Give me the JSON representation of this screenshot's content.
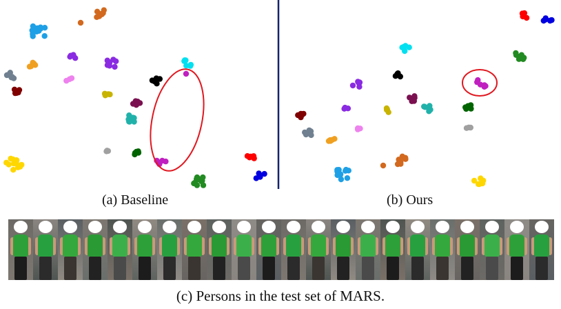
{
  "captions": {
    "a": "(a) Baseline",
    "b": "(b) Ours",
    "c": "(c) Persons in the test set of MARS."
  },
  "colors": {
    "divider": "#14246b",
    "ellipse": "#e01820",
    "shirt": "#2ea03a"
  },
  "person_count": 22
}
